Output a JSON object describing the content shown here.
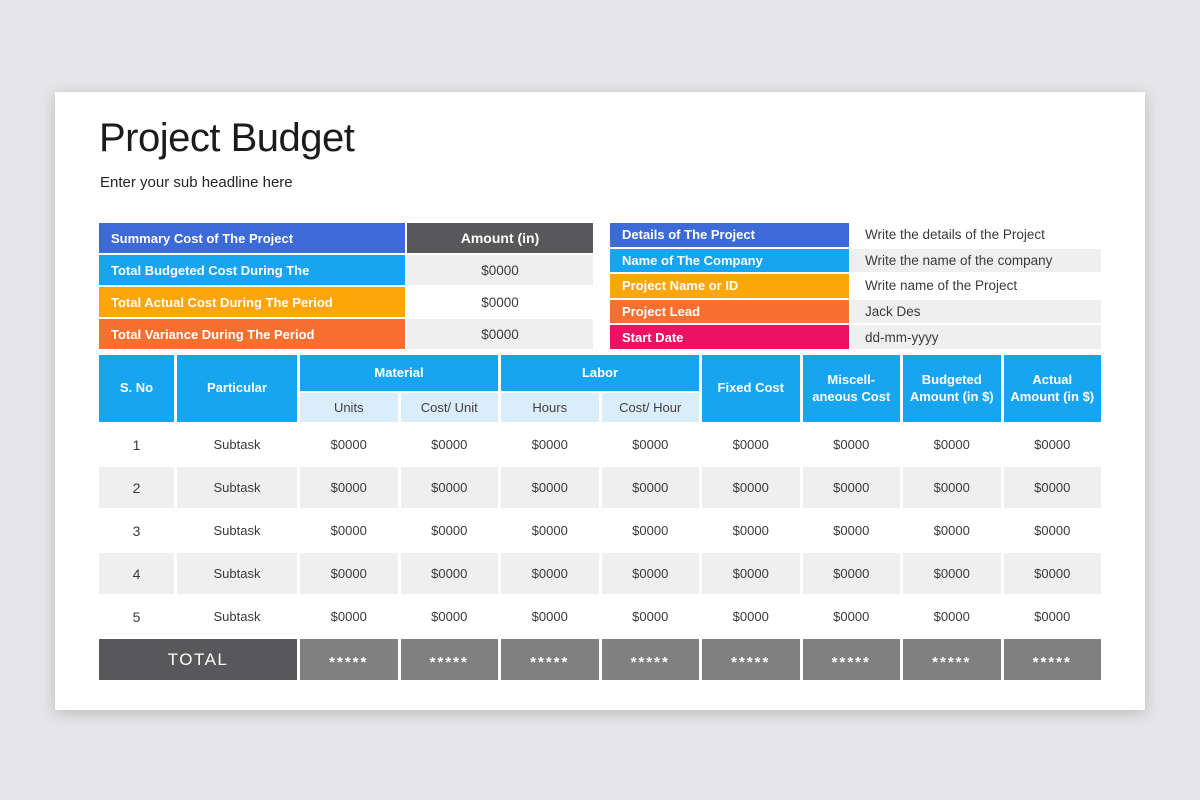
{
  "page": {
    "title": "Project Budget",
    "subtitle": "Enter your sub headline here"
  },
  "colors": {
    "page_background": "#e6e5e7",
    "card_background": "#ffffff",
    "blue": "#3c6bd9",
    "light_blue": "#17a5f1",
    "amber": "#fca609",
    "orange": "#f8702f",
    "pink": "#ed1164",
    "dark_gray": "#58585a",
    "total_gray": "#808080",
    "row_gray": "#efefef",
    "subheader_blue": "#d9eefa"
  },
  "summary_table": {
    "header": {
      "label": "Summary Cost of The Project",
      "label_bg": "#3c6bd9",
      "amount": "Amount (in)",
      "amount_bg": "#58585a"
    },
    "rows": [
      {
        "label": "Total Budgeted Cost During The",
        "color": "#17a5f1",
        "value": "$0000",
        "value_bg": "#efefef"
      },
      {
        "label": "Total Actual Cost During The Period",
        "color": "#fca609",
        "value": "$0000",
        "value_bg": "#ffffff"
      },
      {
        "label": "Total Variance During The Period",
        "color": "#f8702f",
        "value": "$0000",
        "value_bg": "#efefef"
      }
    ]
  },
  "details_table": {
    "rows": [
      {
        "label": "Details of The Project",
        "color": "#3c6bd9",
        "value": "Write the details of the Project",
        "value_bg": "#ffffff"
      },
      {
        "label": "Name of The Company",
        "color": "#17a5f1",
        "value": "Write the name of the company",
        "value_bg": "#efefef"
      },
      {
        "label": "Project Name or ID",
        "color": "#fca609",
        "value": "Write name of the Project",
        "value_bg": "#ffffff"
      },
      {
        "label": "Project Lead",
        "color": "#f8702f",
        "value": "Jack Des",
        "value_bg": "#efefef"
      },
      {
        "label": "Start Date",
        "color": "#ed1164",
        "value": "dd-mm-yyyy",
        "value_bg": "#efefef"
      }
    ]
  },
  "main_table": {
    "colors": {
      "header_bg": "#17a5f1",
      "subheader_bg": "#d9eefa",
      "total_label_bg": "#58585a",
      "total_cell_bg": "#808080"
    },
    "header": {
      "sno": "S. No",
      "particular": "Particular",
      "material": "Material",
      "labor": "Labor",
      "material_sub": [
        "Units",
        "Cost/ Unit"
      ],
      "labor_sub": [
        "Hours",
        "Cost/ Hour"
      ],
      "fixed_cost": "Fixed Cost",
      "misc_cost": "Miscell-aneous Cost",
      "budgeted": "Budgeted Amount (in $)",
      "actual": "Actual Amount (in $)"
    },
    "rows": [
      {
        "sno": "1",
        "particular": "Subtask",
        "values": [
          "$0000",
          "$0000",
          "$0000",
          "$0000",
          "$0000",
          "$0000",
          "$0000",
          "$0000"
        ]
      },
      {
        "sno": "2",
        "particular": "Subtask",
        "values": [
          "$0000",
          "$0000",
          "$0000",
          "$0000",
          "$0000",
          "$0000",
          "$0000",
          "$0000"
        ]
      },
      {
        "sno": "3",
        "particular": "Subtask",
        "values": [
          "$0000",
          "$0000",
          "$0000",
          "$0000",
          "$0000",
          "$0000",
          "$0000",
          "$0000"
        ]
      },
      {
        "sno": "4",
        "particular": "Subtask",
        "values": [
          "$0000",
          "$0000",
          "$0000",
          "$0000",
          "$0000",
          "$0000",
          "$0000",
          "$0000"
        ]
      },
      {
        "sno": "5",
        "particular": "Subtask",
        "values": [
          "$0000",
          "$0000",
          "$0000",
          "$0000",
          "$0000",
          "$0000",
          "$0000",
          "$0000"
        ]
      }
    ],
    "total": {
      "label": "TOTAL",
      "stars": "*****"
    }
  }
}
